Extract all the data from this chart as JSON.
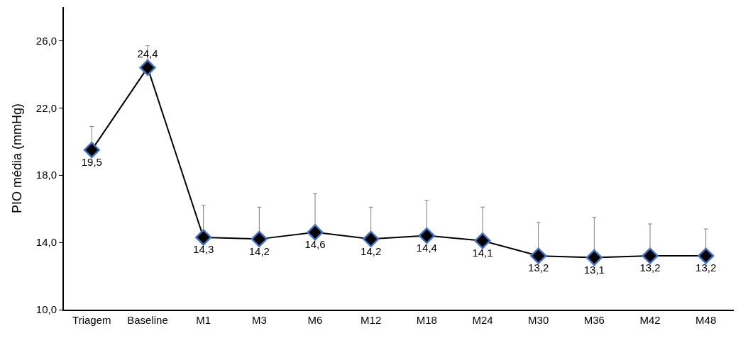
{
  "chart_data": {
    "type": "line",
    "ylabel": "PIO média (mmHg)",
    "categories": [
      "Triagem",
      "Baseline",
      "M1",
      "M3",
      "M6",
      "M12",
      "M18",
      "M24",
      "M30",
      "M36",
      "M42",
      "M48"
    ],
    "series": [
      {
        "color": "#000000",
        "values": [
          19.5,
          24.4,
          14.3,
          14.2,
          14.6,
          14.2,
          14.4,
          14.1,
          13.2,
          13.1,
          13.2,
          13.2
        ],
        "value_labels": [
          "19,5",
          "24,4",
          "14,3",
          "14,2",
          "14,6",
          "14,2",
          "14,4",
          "14,1",
          "13,2",
          "13,1",
          "13,2",
          "13,2"
        ],
        "errors": [
          [
            19.5,
            20.9
          ],
          [
            24.4,
            25.7
          ],
          [
            14.3,
            16.2
          ],
          [
            14.2,
            16.1
          ],
          [
            14.6,
            16.9
          ],
          [
            14.2,
            16.1
          ],
          [
            14.4,
            16.5
          ],
          [
            14.1,
            16.1
          ],
          [
            13.2,
            15.2
          ],
          [
            13.1,
            15.5
          ],
          [
            13.2,
            15.1
          ],
          [
            13.2,
            14.8
          ]
        ]
      }
    ],
    "ylim": [
      10,
      28
    ],
    "yticks": [
      {
        "value": 10,
        "label": "10,0"
      },
      {
        "value": 14,
        "label": "14,0"
      },
      {
        "value": 18,
        "label": "18,0"
      },
      {
        "value": 22,
        "label": "22,0"
      },
      {
        "value": 26,
        "label": "26,0"
      }
    ],
    "marker": "diamond",
    "line_style": "solid",
    "legend": false
  }
}
